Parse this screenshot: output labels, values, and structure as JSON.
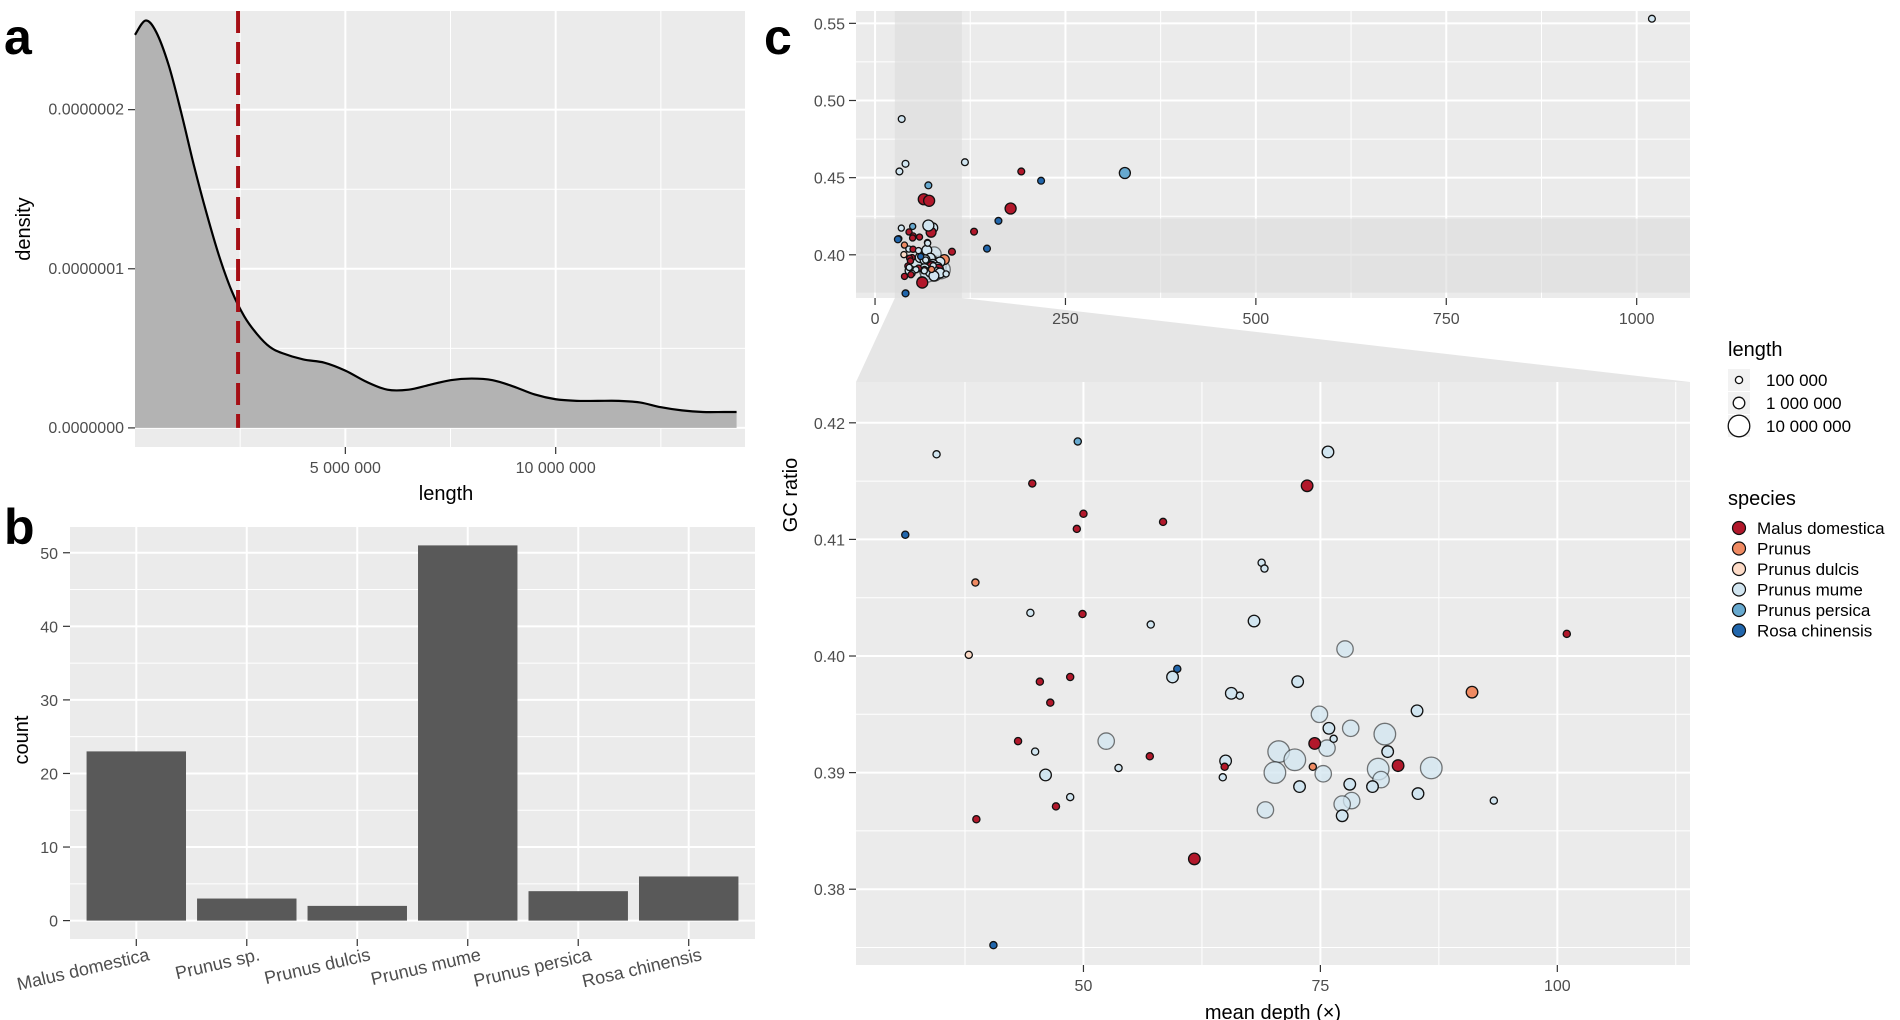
{
  "panels": {
    "a": "a",
    "b": "b",
    "c": "c"
  },
  "colors": {
    "panel_bg": "#ebebeb",
    "grid": "#ffffff",
    "density_fill": "#b3b3b3",
    "median_line": "#a50f15",
    "bar_fill": "#595959",
    "species": {
      "Malus domestica": "#b2182b",
      "Prunus": "#ef8a62",
      "Prunus dulcis": "#fddbc7",
      "Prunus mume": "#d1e5f0",
      "Prunus persica": "#67a9cf",
      "Rosa chinensis": "#2166ac"
    }
  },
  "chart_data": [
    {
      "panel": "a",
      "type": "area",
      "xlabel": "length",
      "ylabel": "density",
      "xlim": [
        0,
        14500000
      ],
      "ylim": [
        -1.2e-08,
        2.62e-07
      ],
      "x_ticks": [
        5000000,
        10000000
      ],
      "x_tick_labels": [
        "5 000 000",
        "10 000 000"
      ],
      "y_ticks": [
        0,
        1e-07,
        2e-07
      ],
      "y_tick_labels": [
        "0.0000000",
        "0.0000001",
        "0.0000002"
      ],
      "median_line_x": 2450000,
      "curve": [
        [
          0,
          2.47e-07
        ],
        [
          250000,
          2.56e-07
        ],
        [
          500000,
          2.49e-07
        ],
        [
          800000,
          2.28e-07
        ],
        [
          1100000,
          1.98e-07
        ],
        [
          1400000,
          1.65e-07
        ],
        [
          1700000,
          1.35e-07
        ],
        [
          2000000,
          1.08e-07
        ],
        [
          2300000,
          8.6e-08
        ],
        [
          2600000,
          7e-08
        ],
        [
          2900000,
          5.9e-08
        ],
        [
          3200000,
          5.1e-08
        ],
        [
          3500000,
          4.7e-08
        ],
        [
          4000000,
          4.3e-08
        ],
        [
          4500000,
          4.1e-08
        ],
        [
          5000000,
          3.6e-08
        ],
        [
          5500000,
          2.9e-08
        ],
        [
          6000000,
          2.4e-08
        ],
        [
          6500000,
          2.4e-08
        ],
        [
          7000000,
          2.7e-08
        ],
        [
          7500000,
          3e-08
        ],
        [
          8000000,
          3.1e-08
        ],
        [
          8500000,
          3e-08
        ],
        [
          9000000,
          2.6e-08
        ],
        [
          9500000,
          2.1e-08
        ],
        [
          10000000,
          1.8e-08
        ],
        [
          10500000,
          1.7e-08
        ],
        [
          11000000,
          1.7e-08
        ],
        [
          11500000,
          1.7e-08
        ],
        [
          12000000,
          1.6e-08
        ],
        [
          12500000,
          1.3e-08
        ],
        [
          13000000,
          1.1e-08
        ],
        [
          13500000,
          1e-08
        ],
        [
          14000000,
          1e-08
        ],
        [
          14300000,
          1e-08
        ]
      ]
    },
    {
      "panel": "b",
      "type": "bar",
      "xlabel": "",
      "ylabel": "count",
      "categories": [
        "Malus domestica",
        "Prunus sp.",
        "Prunus dulcis",
        "Prunus mume",
        "Prunus persica",
        "Rosa chinensis"
      ],
      "values": [
        23,
        3,
        2,
        51,
        4,
        6
      ],
      "ylim": [
        -2.5,
        53.5
      ],
      "y_ticks": [
        0,
        10,
        20,
        30,
        40,
        50
      ],
      "y_tick_labels": [
        "0",
        "10",
        "20",
        "30",
        "40",
        "50"
      ]
    },
    {
      "panel": "c-overview",
      "type": "scatter",
      "xlim": [
        -25,
        1070
      ],
      "ylim": [
        0.372,
        0.558
      ],
      "x_ticks": [
        0,
        250,
        500,
        750,
        1000
      ],
      "x_tick_labels": [
        "0",
        "250",
        "500",
        "750",
        "1000"
      ],
      "y_ticks": [
        0.4,
        0.45,
        0.5,
        0.55
      ],
      "y_tick_labels": [
        "0.40",
        "0.45",
        "0.50",
        "0.55"
      ],
      "zoom_region": {
        "x": [
          26,
          114
        ],
        "y": [
          0.3755,
          0.4235
        ]
      },
      "points": [
        {
          "x": 1020,
          "y": 0.553,
          "s": 1,
          "sp": "Prunus mume"
        },
        {
          "x": 35,
          "y": 0.488,
          "s": 1,
          "sp": "Prunus mume"
        },
        {
          "x": 40,
          "y": 0.459,
          "s": 1,
          "sp": "Prunus mume"
        },
        {
          "x": 32,
          "y": 0.454,
          "s": 1,
          "sp": "Prunus mume"
        },
        {
          "x": 118,
          "y": 0.46,
          "s": 1,
          "sp": "Prunus mume"
        },
        {
          "x": 192,
          "y": 0.454,
          "s": 1,
          "sp": "Malus domestica"
        },
        {
          "x": 218,
          "y": 0.448,
          "s": 1,
          "sp": "Rosa chinensis"
        },
        {
          "x": 328,
          "y": 0.453,
          "s": 2,
          "sp": "Prunus persica"
        },
        {
          "x": 70,
          "y": 0.445,
          "s": 1,
          "sp": "Prunus persica"
        },
        {
          "x": 64,
          "y": 0.436,
          "s": 2,
          "sp": "Malus domestica"
        },
        {
          "x": 71,
          "y": 0.435,
          "s": 2,
          "sp": "Malus domestica"
        },
        {
          "x": 178,
          "y": 0.43,
          "s": 2,
          "sp": "Malus domestica"
        },
        {
          "x": 162,
          "y": 0.422,
          "s": 1,
          "sp": "Rosa chinensis"
        },
        {
          "x": 130,
          "y": 0.415,
          "s": 1,
          "sp": "Malus domestica"
        },
        {
          "x": 147,
          "y": 0.404,
          "s": 1,
          "sp": "Rosa chinensis"
        },
        {
          "x": 70,
          "y": 0.419,
          "s": 2,
          "sp": "Prunus mume"
        },
        {
          "x": 101,
          "y": 0.402,
          "s": 1,
          "sp": "Malus domestica"
        },
        {
          "x": 40,
          "y": 0.375,
          "s": 1,
          "sp": "Rosa chinensis"
        },
        {
          "x": 62,
          "y": 0.382,
          "s": 2,
          "sp": "Malus domestica"
        },
        {
          "x": 30,
          "y": 0.41,
          "s": 1,
          "sp": "Rosa chinensis"
        }
      ]
    },
    {
      "panel": "c-zoom",
      "type": "scatter",
      "xlabel": "mean  depth (×)",
      "ylabel": "GC  ratio",
      "xlim": [
        26,
        114
      ],
      "ylim": [
        0.3735,
        0.4235
      ],
      "x_ticks": [
        50,
        75,
        100
      ],
      "x_tick_labels": [
        "50",
        "75",
        "100"
      ],
      "y_ticks": [
        0.38,
        0.39,
        0.4,
        0.41,
        0.42
      ],
      "y_tick_labels": [
        "0.38",
        "0.39",
        "0.40",
        "0.41",
        "0.42"
      ],
      "points": [
        {
          "x": 34.5,
          "y": 0.4173,
          "s": 1,
          "sp": "Prunus mume"
        },
        {
          "x": 49.4,
          "y": 0.4184,
          "s": 1,
          "sp": "Prunus persica"
        },
        {
          "x": 75.8,
          "y": 0.4175,
          "s": 2,
          "sp": "Prunus mume"
        },
        {
          "x": 73.6,
          "y": 0.4146,
          "s": 2,
          "sp": "Malus domestica"
        },
        {
          "x": 44.6,
          "y": 0.4148,
          "s": 1,
          "sp": "Malus domestica"
        },
        {
          "x": 50.0,
          "y": 0.4122,
          "s": 1,
          "sp": "Malus domestica"
        },
        {
          "x": 58.4,
          "y": 0.4115,
          "s": 1,
          "sp": "Malus domestica"
        },
        {
          "x": 49.3,
          "y": 0.4109,
          "s": 1,
          "sp": "Malus domestica"
        },
        {
          "x": 31.2,
          "y": 0.4104,
          "s": 1,
          "sp": "Rosa chinensis"
        },
        {
          "x": 68.8,
          "y": 0.408,
          "s": 1,
          "sp": "Prunus mume"
        },
        {
          "x": 69.1,
          "y": 0.4075,
          "s": 1,
          "sp": "Prunus mume"
        },
        {
          "x": 38.6,
          "y": 0.4063,
          "s": 1,
          "sp": "Prunus"
        },
        {
          "x": 44.4,
          "y": 0.4037,
          "s": 1,
          "sp": "Prunus mume"
        },
        {
          "x": 49.9,
          "y": 0.4036,
          "s": 1,
          "sp": "Malus domestica"
        },
        {
          "x": 57.1,
          "y": 0.4027,
          "s": 1,
          "sp": "Prunus mume"
        },
        {
          "x": 68.0,
          "y": 0.403,
          "s": 2,
          "sp": "Prunus mume"
        },
        {
          "x": 77.6,
          "y": 0.4006,
          "s": 3,
          "sp": "Prunus mume"
        },
        {
          "x": 101.0,
          "y": 0.4019,
          "s": 1,
          "sp": "Malus domestica"
        },
        {
          "x": 37.9,
          "y": 0.4001,
          "s": 1,
          "sp": "Prunus dulcis"
        },
        {
          "x": 59.9,
          "y": 0.3989,
          "s": 1,
          "sp": "Rosa chinensis"
        },
        {
          "x": 59.4,
          "y": 0.3982,
          "s": 2,
          "sp": "Prunus mume"
        },
        {
          "x": 48.6,
          "y": 0.3982,
          "s": 1,
          "sp": "Malus domestica"
        },
        {
          "x": 45.4,
          "y": 0.3978,
          "s": 1,
          "sp": "Malus domestica"
        },
        {
          "x": 72.6,
          "y": 0.3978,
          "s": 2,
          "sp": "Prunus mume"
        },
        {
          "x": 65.6,
          "y": 0.3968,
          "s": 2,
          "sp": "Prunus mume"
        },
        {
          "x": 66.5,
          "y": 0.3966,
          "s": 1,
          "sp": "Prunus mume"
        },
        {
          "x": 91.0,
          "y": 0.3969,
          "s": 2,
          "sp": "Prunus"
        },
        {
          "x": 46.5,
          "y": 0.396,
          "s": 1,
          "sp": "Malus domestica"
        },
        {
          "x": 85.2,
          "y": 0.3953,
          "s": 2,
          "sp": "Prunus mume"
        },
        {
          "x": 74.9,
          "y": 0.395,
          "s": 3,
          "sp": "Prunus mume"
        },
        {
          "x": 75.9,
          "y": 0.3938,
          "s": 2,
          "sp": "Prunus mume"
        },
        {
          "x": 78.2,
          "y": 0.3938,
          "s": 3,
          "sp": "Prunus mume"
        },
        {
          "x": 76.4,
          "y": 0.3929,
          "s": 1,
          "sp": "Prunus mume"
        },
        {
          "x": 81.8,
          "y": 0.3933,
          "s": 4,
          "sp": "Prunus mume"
        },
        {
          "x": 74.4,
          "y": 0.3925,
          "s": 2,
          "sp": "Malus domestica"
        },
        {
          "x": 52.4,
          "y": 0.3927,
          "s": 3,
          "sp": "Prunus mume"
        },
        {
          "x": 43.1,
          "y": 0.3927,
          "s": 1,
          "sp": "Malus domestica"
        },
        {
          "x": 44.9,
          "y": 0.3918,
          "s": 1,
          "sp": "Prunus mume"
        },
        {
          "x": 57.0,
          "y": 0.3914,
          "s": 1,
          "sp": "Malus domestica"
        },
        {
          "x": 70.6,
          "y": 0.3918,
          "s": 4,
          "sp": "Prunus mume"
        },
        {
          "x": 72.3,
          "y": 0.3911,
          "s": 4,
          "sp": "Prunus mume"
        },
        {
          "x": 75.7,
          "y": 0.3921,
          "s": 3,
          "sp": "Prunus mume"
        },
        {
          "x": 82.1,
          "y": 0.3918,
          "s": 2,
          "sp": "Prunus mume"
        },
        {
          "x": 65.0,
          "y": 0.391,
          "s": 2,
          "sp": "Prunus mume"
        },
        {
          "x": 53.7,
          "y": 0.3904,
          "s": 1,
          "sp": "Prunus mume"
        },
        {
          "x": 64.9,
          "y": 0.3905,
          "s": 1,
          "sp": "Malus domestica"
        },
        {
          "x": 74.2,
          "y": 0.3905,
          "s": 1,
          "sp": "Prunus"
        },
        {
          "x": 83.2,
          "y": 0.3906,
          "s": 2,
          "sp": "Malus domestica"
        },
        {
          "x": 81.1,
          "y": 0.3903,
          "s": 4,
          "sp": "Prunus mume"
        },
        {
          "x": 86.7,
          "y": 0.3904,
          "s": 4,
          "sp": "Prunus mume"
        },
        {
          "x": 70.2,
          "y": 0.39,
          "s": 4,
          "sp": "Prunus mume"
        },
        {
          "x": 46.0,
          "y": 0.3898,
          "s": 2,
          "sp": "Prunus mume"
        },
        {
          "x": 75.3,
          "y": 0.3899,
          "s": 3,
          "sp": "Prunus mume"
        },
        {
          "x": 64.7,
          "y": 0.3896,
          "s": 1,
          "sp": "Prunus mume"
        },
        {
          "x": 81.4,
          "y": 0.3894,
          "s": 3,
          "sp": "Prunus mume"
        },
        {
          "x": 78.1,
          "y": 0.389,
          "s": 2,
          "sp": "Prunus mume"
        },
        {
          "x": 72.8,
          "y": 0.3888,
          "s": 2,
          "sp": "Prunus mume"
        },
        {
          "x": 80.5,
          "y": 0.3888,
          "s": 2,
          "sp": "Prunus mume"
        },
        {
          "x": 85.3,
          "y": 0.3882,
          "s": 2,
          "sp": "Prunus mume"
        },
        {
          "x": 48.6,
          "y": 0.3879,
          "s": 1,
          "sp": "Prunus mume"
        },
        {
          "x": 78.3,
          "y": 0.3876,
          "s": 3,
          "sp": "Prunus mume"
        },
        {
          "x": 77.3,
          "y": 0.3873,
          "s": 3,
          "sp": "Prunus mume"
        },
        {
          "x": 93.3,
          "y": 0.3876,
          "s": 1,
          "sp": "Prunus mume"
        },
        {
          "x": 47.1,
          "y": 0.3871,
          "s": 1,
          "sp": "Malus domestica"
        },
        {
          "x": 69.2,
          "y": 0.3868,
          "s": 3,
          "sp": "Prunus mume"
        },
        {
          "x": 77.3,
          "y": 0.3863,
          "s": 2,
          "sp": "Prunus mume"
        },
        {
          "x": 38.7,
          "y": 0.386,
          "s": 1,
          "sp": "Malus domestica"
        },
        {
          "x": 61.7,
          "y": 0.3826,
          "s": 2,
          "sp": "Malus domestica"
        },
        {
          "x": 40.5,
          "y": 0.3752,
          "s": 1,
          "sp": "Rosa chinensis"
        }
      ]
    }
  ],
  "legend": {
    "length_title": "length",
    "length_items": [
      {
        "label": "100 000",
        "s": 1
      },
      {
        "label": "1 000 000",
        "s": 2
      },
      {
        "label": "10 000 000",
        "s": 4
      }
    ],
    "species_title": "species",
    "species_items": [
      "Malus domestica",
      "Prunus",
      "Prunus dulcis",
      "Prunus mume",
      "Prunus persica",
      "Rosa chinensis"
    ]
  }
}
